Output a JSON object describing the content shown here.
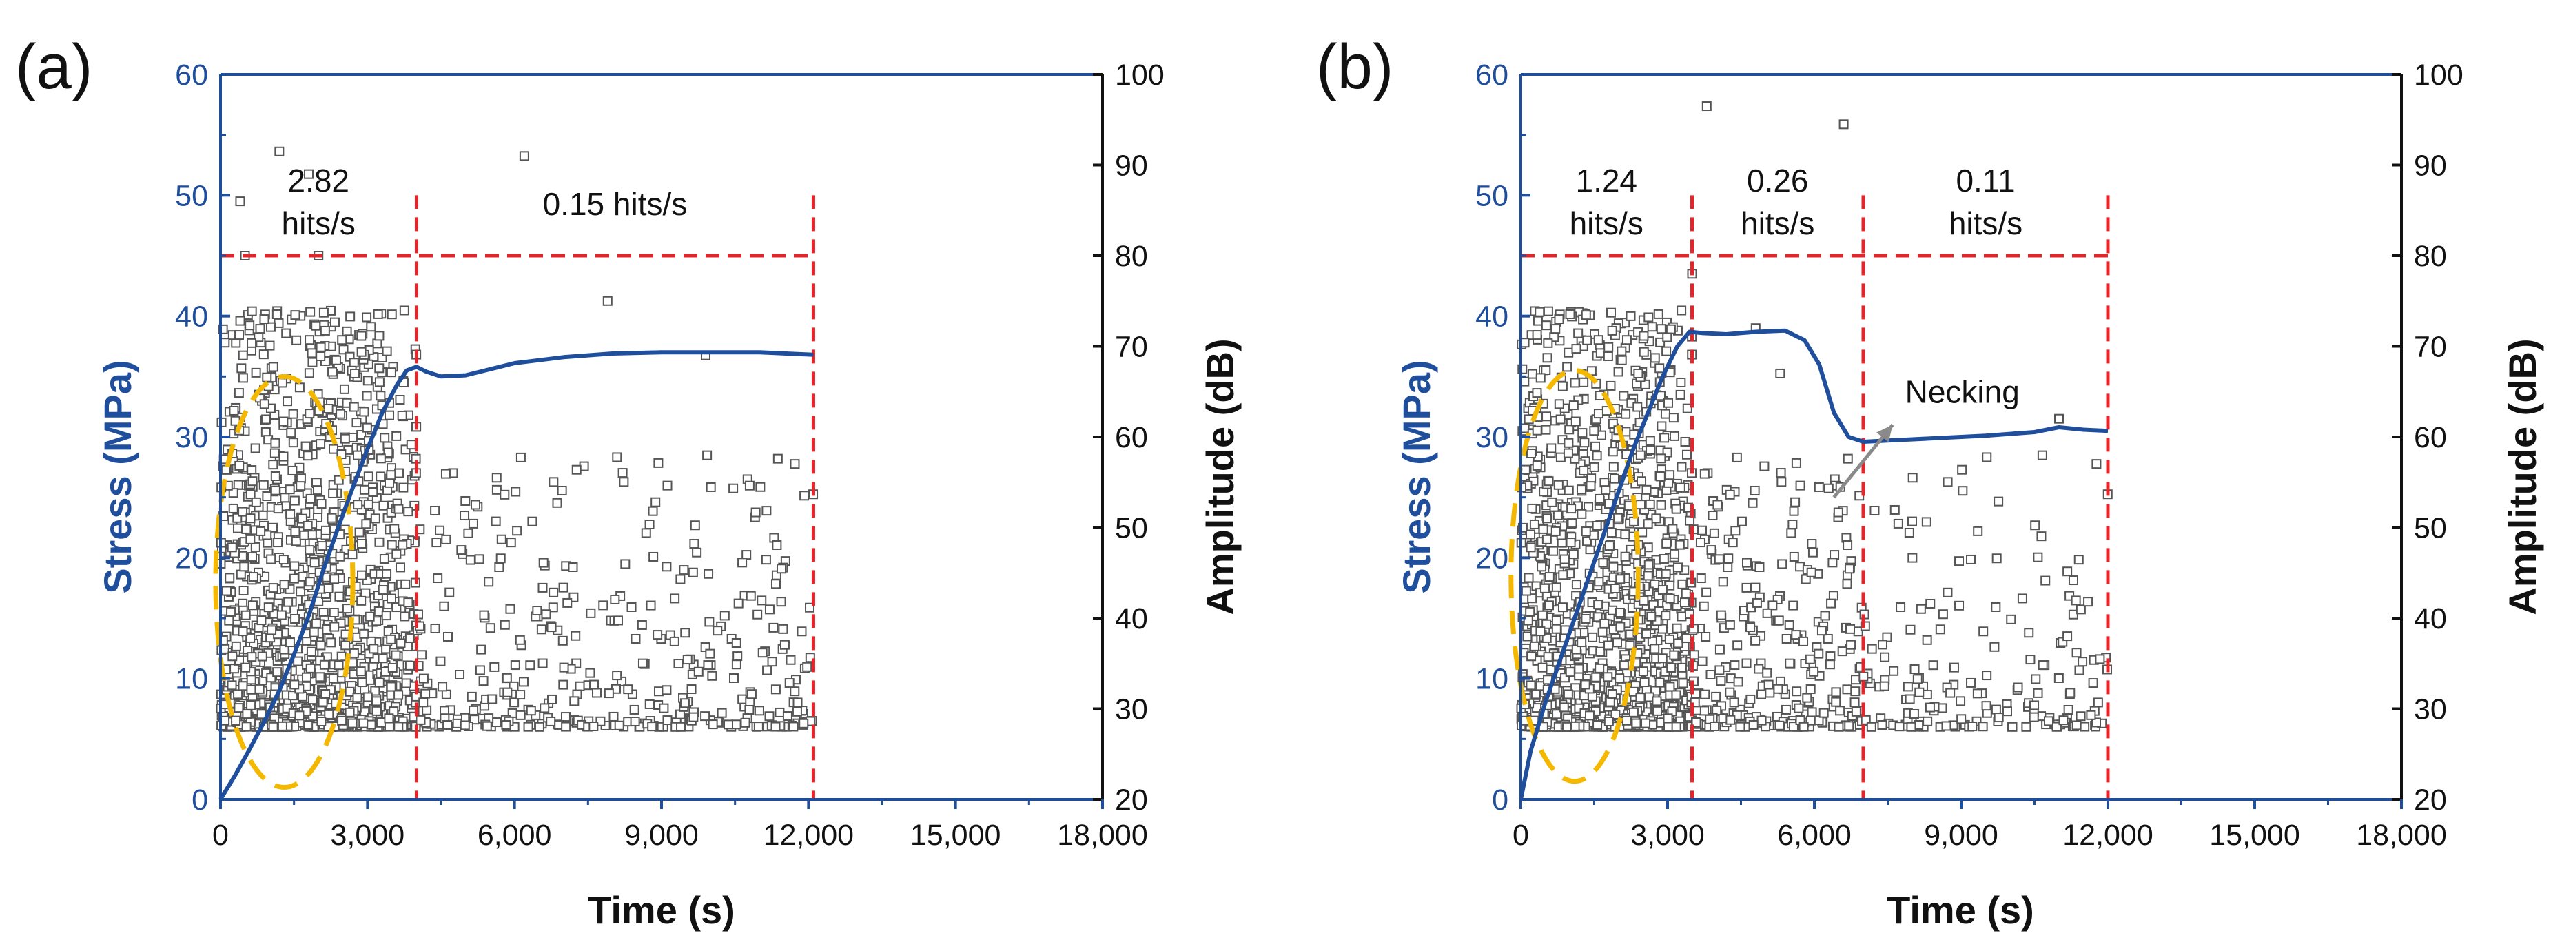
{
  "chart_data": [
    {
      "panel": "(a)",
      "type": "line",
      "xlabel": "Time (s)",
      "ylabel_left": "Stress (MPa)",
      "ylabel_right": "Amplitude (dB)",
      "xlim": [
        0,
        18000
      ],
      "ylim_left": [
        0,
        60
      ],
      "ylim_right": [
        20,
        100
      ],
      "xticks": [
        "0",
        "3,000",
        "6,000",
        "9,000",
        "12,000",
        "15,000",
        "18,000"
      ],
      "xtick_values": [
        0,
        3000,
        6000,
        9000,
        12000,
        15000,
        18000
      ],
      "yticks_left": [
        "0",
        "10",
        "20",
        "30",
        "40",
        "50",
        "60"
      ],
      "ytick_left_values": [
        0,
        10,
        20,
        30,
        40,
        50,
        60
      ],
      "yticks_right": [
        "20",
        "30",
        "40",
        "50",
        "60",
        "70",
        "80",
        "90",
        "100"
      ],
      "ytick_right_values": [
        20,
        30,
        40,
        50,
        60,
        70,
        80,
        90,
        100
      ],
      "series": [
        {
          "axis": "left",
          "color": "#1f4e9c",
          "x": [
            0,
            300,
            600,
            900,
            1200,
            1500,
            1800,
            2100,
            2400,
            2700,
            3000,
            3300,
            3600,
            3800,
            4000,
            4200,
            4500,
            5000,
            5500,
            6000,
            7000,
            8000,
            9000,
            10000,
            11000,
            12100
          ],
          "y": [
            0,
            2,
            4.2,
            6.5,
            9,
            12,
            15.2,
            19,
            22.5,
            25.8,
            29,
            32,
            34.3,
            35.5,
            35.8,
            35.4,
            35,
            35.1,
            35.6,
            36.1,
            36.6,
            36.9,
            37.0,
            37.0,
            37.0,
            36.8
          ]
        }
      ],
      "scatter": {
        "axis": "right",
        "time_range": [
          0,
          12100
        ],
        "amplitude_floor": 28,
        "note_points": [
          [
            400,
            86
          ],
          [
            1200,
            91.5
          ],
          [
            1800,
            89
          ],
          [
            6200,
            91
          ],
          [
            7900,
            75
          ],
          [
            9900,
            69
          ],
          [
            500,
            80
          ],
          [
            2000,
            80
          ]
        ]
      },
      "segments": [
        {
          "x_start": 0,
          "x_end": 4000,
          "rate": "2.82\nhits/s"
        },
        {
          "x_start": 4000,
          "x_end": 12100,
          "rate": "0.15 hits/s"
        }
      ],
      "dividers": [
        4000,
        12100
      ],
      "threshold_right": 80,
      "ellipse": {
        "x_center": 1300,
        "y_center_left": 18,
        "x_radius": 1400,
        "y_radius_left": 17
      }
    },
    {
      "panel": "(b)",
      "type": "line",
      "xlabel": "Time (s)",
      "ylabel_left": "Stress (MPa)",
      "ylabel_right": "Amplitude (dB)",
      "xlim": [
        0,
        18000
      ],
      "ylim_left": [
        0,
        60
      ],
      "ylim_right": [
        20,
        100
      ],
      "xticks": [
        "0",
        "3,000",
        "6,000",
        "9,000",
        "12,000",
        "15,000",
        "18,000"
      ],
      "xtick_values": [
        0,
        3000,
        6000,
        9000,
        12000,
        15000,
        18000
      ],
      "yticks_left": [
        "0",
        "10",
        "20",
        "30",
        "40",
        "50",
        "60"
      ],
      "ytick_left_values": [
        0,
        10,
        20,
        30,
        40,
        50,
        60
      ],
      "yticks_right": [
        "20",
        "30",
        "40",
        "50",
        "60",
        "70",
        "80",
        "90",
        "100"
      ],
      "ytick_right_values": [
        20,
        30,
        40,
        50,
        60,
        70,
        80,
        90,
        100
      ],
      "series": [
        {
          "axis": "left",
          "color": "#1f4e9c",
          "x": [
            0,
            200,
            500,
            800,
            1100,
            1400,
            1700,
            2000,
            2300,
            2600,
            2900,
            3200,
            3450,
            3700,
            4200,
            4800,
            5400,
            5800,
            6100,
            6400,
            6700,
            7000,
            7500,
            8500,
            9500,
            10500,
            11000,
            11500,
            12000
          ],
          "y": [
            0,
            4,
            8,
            11.5,
            15,
            18.5,
            22,
            25.5,
            29,
            32,
            35,
            37.5,
            38.7,
            38.6,
            38.5,
            38.7,
            38.8,
            38.0,
            36.0,
            32.0,
            30.0,
            29.6,
            29.7,
            29.9,
            30.1,
            30.4,
            30.8,
            30.6,
            30.5
          ]
        }
      ],
      "scatter": {
        "axis": "right",
        "time_range": [
          0,
          12000
        ],
        "amplitude_floor": 28,
        "note_points": [
          [
            3500,
            78
          ],
          [
            3800,
            96.5
          ],
          [
            6600,
            94.5
          ],
          [
            4800,
            72
          ],
          [
            5300,
            67
          ],
          [
            11000,
            62
          ]
        ]
      },
      "segments": [
        {
          "x_start": 0,
          "x_end": 3500,
          "rate": "1.24\nhits/s"
        },
        {
          "x_start": 3500,
          "x_end": 7000,
          "rate": "0.26\nhits/s"
        },
        {
          "x_start": 7000,
          "x_end": 12000,
          "rate": "0.11\nhits/s"
        }
      ],
      "dividers": [
        3500,
        7000,
        12000
      ],
      "threshold_right": 80,
      "ellipse": {
        "x_center": 1100,
        "y_center_left": 18.5,
        "x_radius": 1300,
        "y_radius_left": 17
      },
      "annotation": {
        "text": "Necking",
        "arrow_from": [
          6400,
          25
        ],
        "arrow_to": [
          7600,
          31
        ]
      }
    }
  ],
  "colors": {
    "stress_line": "#1f4e9c",
    "axis_left": "#1f4e9c",
    "divider": "#e5252a",
    "ellipse": "#f5b800",
    "scatter_marker": "#555555"
  }
}
